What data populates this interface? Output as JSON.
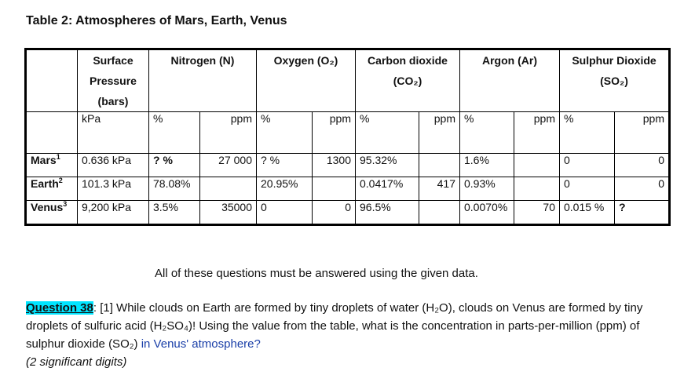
{
  "title": "Table 2: Atmospheres of Mars, Earth, Venus",
  "header": {
    "surface_pressure": "Surface Pressure (bars)",
    "nitrogen": "Nitrogen (N)",
    "oxygen": "Oxygen (O₂)",
    "carbon_dioxide": "Carbon dioxide (CO₂)",
    "argon": "Argon (Ar)",
    "sulphur_dioxide": "Sulphur Dioxide (SO₂)"
  },
  "units": {
    "pressure": "kPa",
    "percent": "%",
    "ppm": "ppm"
  },
  "rows": [
    {
      "planet": "Mars",
      "sup": "1",
      "pressure": "0.636 kPa",
      "n_pct": "? %",
      "n_ppm": "27 000",
      "o_pct": "? %",
      "o_ppm": "1300",
      "co2_pct": "95.32%",
      "co2_ppm": "",
      "ar_pct": "1.6%",
      "ar_ppm": "",
      "so2_pct": "0",
      "so2_ppm": "0"
    },
    {
      "planet": "Earth",
      "sup": "2",
      "pressure": "101.3 kPa",
      "n_pct": "78.08%",
      "n_ppm": "",
      "o_pct": "20.95%",
      "o_ppm": "",
      "co2_pct": "0.0417%",
      "co2_ppm": "417",
      "ar_pct": "0.93%",
      "ar_ppm": "",
      "so2_pct": "0",
      "so2_ppm": "0"
    },
    {
      "planet": "Venus",
      "sup": "3",
      "pressure": "9,200 kPa",
      "n_pct": "3.5%",
      "n_ppm": "35000",
      "o_pct": "0",
      "o_ppm": "0",
      "co2_pct": "96.5%",
      "co2_ppm": "",
      "ar_pct": "0.0070%",
      "ar_ppm": "70",
      "so2_pct": "0.015 %",
      "so2_ppm": "?"
    }
  ],
  "note": "All of these questions must be answered using the given data.",
  "question": {
    "label": "Question 38",
    "text_before": ": [1] While clouds on Earth are formed by tiny droplets of water (H₂O), clouds on Venus are formed by tiny droplets of sulfuric acid (H₂SO₄)! Using the value from the table, what is the concentration in parts-per-million (ppm) of sulphur dioxide (SO₂) ",
    "highlight": "in Venus' atmosphere?",
    "digits": "(2 significant digits)"
  }
}
